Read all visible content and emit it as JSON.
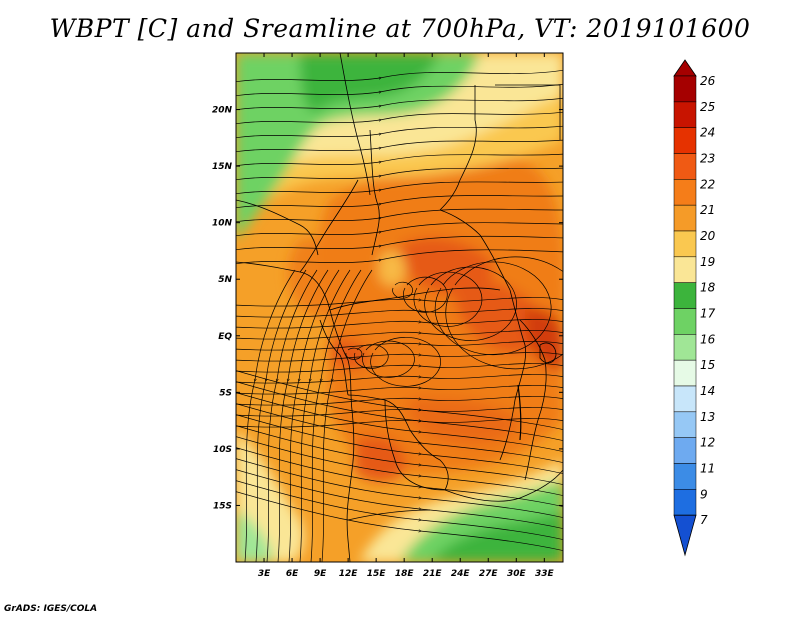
{
  "title": "WBPT [C] and Sreamline at 700hPa, VT: 2019101600",
  "credit": "GrADS: IGES/COLA",
  "map": {
    "lon_range": [
      0,
      35
    ],
    "lat_range": [
      -20,
      25
    ],
    "lon_ticks": [
      "3E",
      "6E",
      "9E",
      "12E",
      "15E",
      "18E",
      "21E",
      "24E",
      "27E",
      "30E",
      "33E"
    ],
    "lon_tick_values": [
      3,
      6,
      9,
      12,
      15,
      18,
      21,
      24,
      27,
      30,
      33
    ],
    "lat_ticks": [
      "20N",
      "15N",
      "10N",
      "5N",
      "EQ",
      "5S",
      "10S",
      "15S"
    ],
    "lat_tick_values": [
      20,
      15,
      10,
      5,
      0,
      -5,
      -10,
      -15
    ]
  },
  "colorbar": {
    "labels": [
      "26",
      "25",
      "24",
      "23",
      "22",
      "21",
      "20",
      "19",
      "18",
      "17",
      "16",
      "15",
      "14",
      "13",
      "12",
      "11",
      "9",
      "7"
    ],
    "colors": [
      "#a50000",
      "#c81400",
      "#e63200",
      "#f05a14",
      "#f57d19",
      "#f59b28",
      "#fac850",
      "#fae696",
      "#3cb43c",
      "#6ed264",
      "#a0e696",
      "#e6fae6",
      "#c8e6fa",
      "#96c8f5",
      "#6eaaf0",
      "#3c8ce6",
      "#1e6ee1",
      "#1450d2"
    ]
  },
  "colors": {
    "background": "#ffffff",
    "orange": "#f5a028",
    "dark_orange": "#f07d19",
    "red_orange": "#e65a14",
    "light_yellow": "#fae696",
    "yellow": "#fac850",
    "green": "#6ed264",
    "dark_green": "#3cb43c",
    "light_green": "#a0e696"
  }
}
